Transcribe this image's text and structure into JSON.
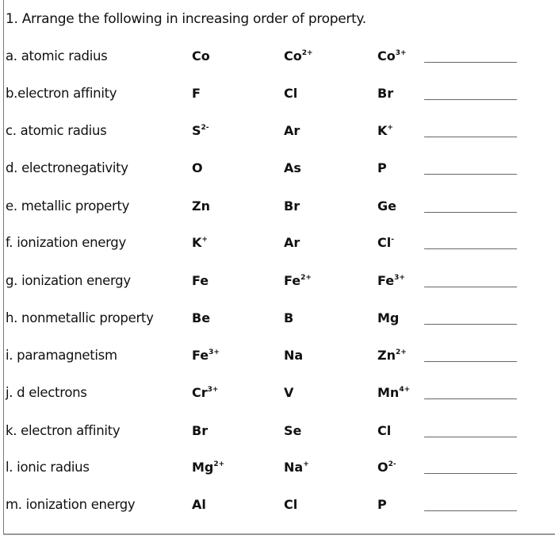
{
  "title": "1. Arrange the following in increasing order of property.",
  "rows": [
    {
      "label": "a. atomic radius",
      "items": [
        {
          "sym": "Co",
          "charge": ""
        },
        {
          "sym": "Co",
          "charge": "2+"
        },
        {
          "sym": "Co",
          "charge": "3+"
        }
      ]
    },
    {
      "label": "b.electron  affinity",
      "items": [
        {
          "sym": "F",
          "charge": ""
        },
        {
          "sym": "Cl",
          "charge": ""
        },
        {
          "sym": "Br",
          "charge": ""
        }
      ]
    },
    {
      "label": "c. atomic radius",
      "items": [
        {
          "sym": "S",
          "charge": "2-"
        },
        {
          "sym": "Ar",
          "charge": ""
        },
        {
          "sym": "K",
          "charge": "+"
        }
      ]
    },
    {
      "label": "d. electronegativity",
      "items": [
        {
          "sym": "O",
          "charge": ""
        },
        {
          "sym": "As",
          "charge": ""
        },
        {
          "sym": "P",
          "charge": ""
        }
      ]
    },
    {
      "label": "e. metallic property",
      "items": [
        {
          "sym": "Zn",
          "charge": ""
        },
        {
          "sym": "Br",
          "charge": ""
        },
        {
          "sym": "Ge",
          "charge": ""
        }
      ]
    },
    {
      "label": "f. ionization energy",
      "items": [
        {
          "sym": "K",
          "charge": "+"
        },
        {
          "sym": "Ar",
          "charge": ""
        },
        {
          "sym": "Cl",
          "charge": "-"
        }
      ]
    },
    {
      "label": "g. ionization energy",
      "items": [
        {
          "sym": "Fe",
          "charge": ""
        },
        {
          "sym": "Fe",
          "charge": "2+"
        },
        {
          "sym": "Fe",
          "charge": "3+"
        }
      ]
    },
    {
      "label": "h. nonmetallic property",
      "items": [
        {
          "sym": "Be",
          "charge": ""
        },
        {
          "sym": "B",
          "charge": ""
        },
        {
          "sym": "Mg",
          "charge": ""
        }
      ]
    },
    {
      "label": "i. paramagnetism",
      "items": [
        {
          "sym": "Fe",
          "charge": "3+"
        },
        {
          "sym": "Na",
          "charge": ""
        },
        {
          "sym": "Zn",
          "charge": "2+"
        }
      ]
    },
    {
      "label": "j. d electrons",
      "items": [
        {
          "sym": "Cr",
          "charge": "3+"
        },
        {
          "sym": "V",
          "charge": ""
        },
        {
          "sym": "Mn",
          "charge": "4+"
        }
      ]
    },
    {
      "label": "k. electron affinity",
      "items": [
        {
          "sym": "Br",
          "charge": ""
        },
        {
          "sym": "Se",
          "charge": ""
        },
        {
          "sym": "Cl",
          "charge": ""
        }
      ]
    },
    {
      "label": "l. ionic radius",
      "items": [
        {
          "sym": "Mg",
          "charge": "2+"
        },
        {
          "sym": "Na",
          "charge": "+"
        },
        {
          "sym": "O",
          "charge": "2-"
        }
      ]
    },
    {
      "label": "m. ionization energy",
      "items": [
        {
          "sym": "Al",
          "charge": ""
        },
        {
          "sym": "Cl",
          "charge": ""
        },
        {
          "sym": "P",
          "charge": ""
        }
      ]
    }
  ]
}
